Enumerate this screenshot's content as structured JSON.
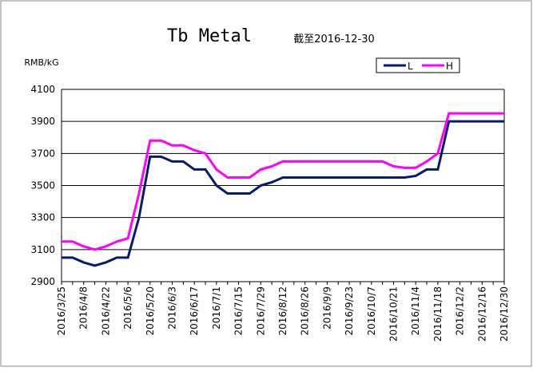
{
  "chart_data": {
    "type": "line",
    "title": "Tb Metal",
    "subtitle": "截至2016-12-30",
    "y_label": "RMB/kG",
    "categories": [
      "2016/3/25",
      null,
      "2016/4/8",
      null,
      "2016/4/22",
      null,
      "2016/5/6",
      null,
      "2016/5/20",
      null,
      "2016/6/3",
      null,
      "2016/6/17",
      null,
      "2016/7/1",
      null,
      "2016/7/15",
      null,
      "2016/7/29",
      null,
      "2016/8/12",
      null,
      "2016/8/26",
      null,
      "2016/9/9",
      null,
      "2016/9/23",
      null,
      "2016/10/7",
      null,
      "2016/10/21",
      null,
      "2016/11/4",
      null,
      "2016/11/18",
      null,
      "2016/12/2",
      null,
      "2016/12/16",
      null,
      "2016/12/30"
    ],
    "series": [
      {
        "name": "L",
        "color": "#0a1a6b",
        "values": [
          3050,
          3050,
          3020,
          3000,
          3020,
          3050,
          3050,
          3300,
          3680,
          3680,
          3650,
          3650,
          3600,
          3600,
          3500,
          3450,
          3450,
          3450,
          3500,
          3520,
          3550,
          3550,
          3550,
          3550,
          3550,
          3550,
          3550,
          3550,
          3550,
          3550,
          3550,
          3550,
          3560,
          3600,
          3600,
          3900,
          3900,
          3900,
          3900,
          3900,
          3900
        ]
      },
      {
        "name": "H",
        "color": "#ff00ff",
        "values": [
          3150,
          3150,
          3120,
          3100,
          3120,
          3150,
          3170,
          3450,
          3780,
          3780,
          3750,
          3750,
          3720,
          3700,
          3600,
          3550,
          3550,
          3550,
          3600,
          3620,
          3650,
          3650,
          3650,
          3650,
          3650,
          3650,
          3650,
          3650,
          3650,
          3650,
          3620,
          3610,
          3610,
          3650,
          3700,
          3950,
          3950,
          3950,
          3950,
          3950,
          3950
        ]
      }
    ],
    "ylim": [
      2900,
      4100
    ],
    "yticks": [
      2900,
      3100,
      3300,
      3500,
      3700,
      3900,
      4100
    ],
    "grid": true
  }
}
